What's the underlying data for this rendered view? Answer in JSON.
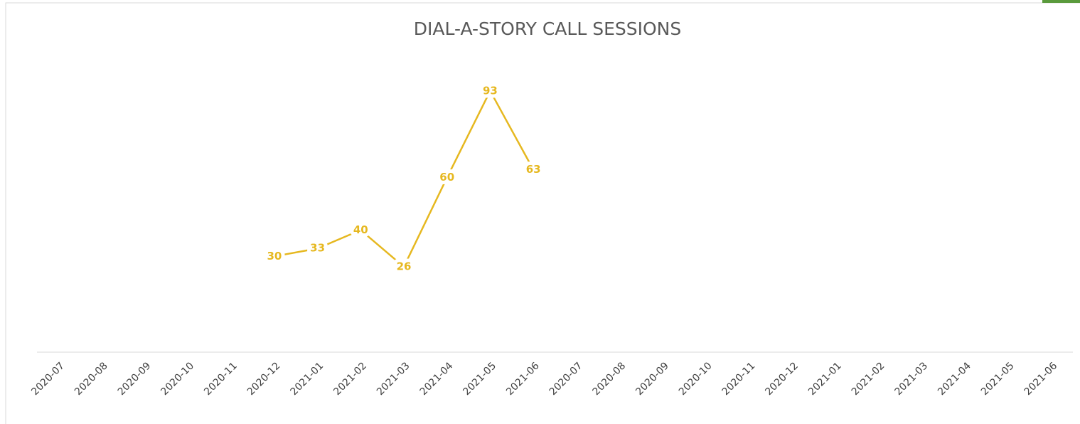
{
  "chart_data": {
    "type": "line",
    "title": "DIAL-A-STORY CALL SESSIONS",
    "categories": [
      "2020-07",
      "2020-08",
      "2020-09",
      "2020-10",
      "2020-11",
      "2020-12",
      "2021-01",
      "2021-02",
      "2021-03",
      "2021-04",
      "2021-05",
      "2021-06",
      "2020-07",
      "2020-08",
      "2020-09",
      "2020-10",
      "2020-11",
      "2020-12",
      "2021-01",
      "2021-02",
      "2021-03",
      "2021-04",
      "2021-05",
      "2021-06"
    ],
    "series": [
      {
        "name": null,
        "color": "#e6b820",
        "values": [
          null,
          null,
          null,
          null,
          null,
          30,
          33,
          40,
          26,
          60,
          93,
          63,
          null,
          null,
          null,
          null,
          null,
          null,
          null,
          null,
          null,
          null,
          null,
          null
        ]
      }
    ],
    "ylim": [
      0,
      100
    ]
  }
}
